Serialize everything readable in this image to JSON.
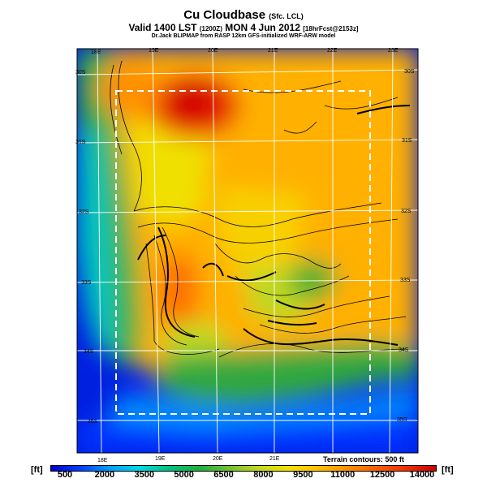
{
  "header": {
    "title": "Cu Cloudbase",
    "title_suffix": "(Sfc. LCL)",
    "subtitle_main": "Valid 1400 LST",
    "subtitle_code": "(1200Z)",
    "subtitle_date": "MON 4 Jun 2012",
    "subtitle_fcst": "[18hrFcst@2153z]",
    "credits": "Dr.Jack BLIPMAP from RASP 12km GFS-initialized WRF-ARW model"
  },
  "map": {
    "lon_labels_top": [
      "18E",
      "19E",
      "20E",
      "21E",
      "22E",
      "23E"
    ],
    "lon_labels_bottom": [
      "18E",
      "19E",
      "20E",
      "21E"
    ],
    "lat_labels_left": [
      "30S",
      "31S",
      "32S",
      "33S",
      "34S",
      "35S"
    ],
    "lat_labels_right": [
      "30S",
      "31S",
      "32S",
      "33S",
      "34S",
      "35S"
    ],
    "terrain_note": "Terrain contours: 500 ft"
  },
  "legend": {
    "unit": "[ft]",
    "labels": [
      "500",
      "2000",
      "3500",
      "5000",
      "6500",
      "8000",
      "9500",
      "11000",
      "12500",
      "14000"
    ],
    "colors": [
      "#0000c8",
      "#0040ff",
      "#00a0ff",
      "#00d8e0",
      "#00c080",
      "#20b040",
      "#70c030",
      "#c0d820",
      "#f0e000",
      "#ffc000",
      "#ff9000",
      "#ff6000",
      "#f03000",
      "#c80000"
    ]
  }
}
